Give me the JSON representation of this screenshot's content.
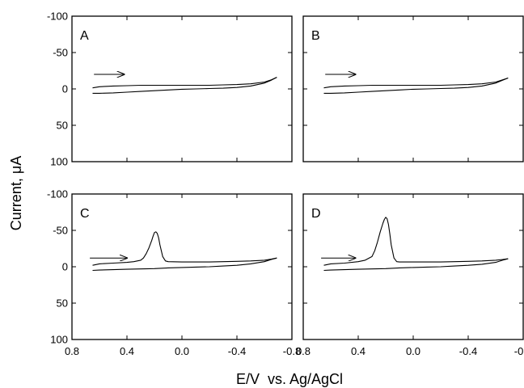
{
  "chart_data": {
    "type": "line",
    "xlabel": "E/V  vs. Ag/AgCl",
    "ylabel": "Current, μA",
    "xlim": [
      0.8,
      -0.8
    ],
    "ylim": [
      -100,
      100
    ],
    "y_inverted": true,
    "xticks": [
      "0.8",
      "0.4",
      "0.0",
      "-0.4",
      "-0.8"
    ],
    "xtick_values": [
      0.8,
      0.4,
      0.0,
      -0.4,
      -0.8
    ],
    "yticks": [
      "-100",
      "-50",
      "0",
      "50",
      "100"
    ],
    "ytick_values": [
      -100,
      -50,
      0,
      50,
      100
    ],
    "panels": [
      {
        "label": "A",
        "arrow": {
          "from": [
            0.64,
            -20
          ],
          "to": [
            0.42,
            -20
          ]
        },
        "series": [
          {
            "x": [
              0.65,
              0.6,
              0.5,
              0.4,
              0.3,
              0.2,
              0.1,
              0.0,
              -0.1,
              -0.2,
              -0.3,
              -0.4,
              -0.5,
              -0.6,
              -0.65,
              -0.69
            ],
            "y": [
              -1.5,
              -3,
              -4,
              -4.5,
              -5,
              -5,
              -5,
              -5,
              -5,
              -5,
              -5.5,
              -6,
              -7,
              -9.5,
              -12.5,
              -16
            ]
          },
          {
            "x": [
              -0.69,
              -0.65,
              -0.6,
              -0.5,
              -0.4,
              -0.3,
              -0.2,
              -0.1,
              0.0,
              0.1,
              0.2,
              0.3,
              0.4,
              0.5,
              0.6,
              0.65
            ],
            "y": [
              -16,
              -12,
              -8,
              -4,
              -2,
              -1,
              -0.5,
              0,
              0.5,
              1.5,
              2.5,
              3.5,
              4.5,
              5.5,
              6,
              6
            ]
          }
        ]
      },
      {
        "label": "B",
        "arrow": {
          "from": [
            0.64,
            -20
          ],
          "to": [
            0.42,
            -20
          ]
        },
        "series": [
          {
            "x": [
              0.65,
              0.6,
              0.5,
              0.4,
              0.3,
              0.2,
              0.1,
              0.0,
              -0.1,
              -0.2,
              -0.3,
              -0.4,
              -0.5,
              -0.6,
              -0.65,
              -0.69
            ],
            "y": [
              -1.5,
              -3,
              -4,
              -4.5,
              -5,
              -5,
              -5,
              -5,
              -5,
              -5,
              -5.5,
              -6,
              -7,
              -9.5,
              -12.5,
              -15
            ]
          },
          {
            "x": [
              -0.69,
              -0.65,
              -0.6,
              -0.5,
              -0.4,
              -0.3,
              -0.2,
              -0.1,
              0.0,
              0.1,
              0.2,
              0.3,
              0.4,
              0.5,
              0.6,
              0.65
            ],
            "y": [
              -15,
              -12,
              -8,
              -4,
              -2,
              -1,
              -0.5,
              0,
              0.5,
              1.5,
              2.5,
              3.5,
              4.5,
              5.5,
              6,
              6
            ]
          }
        ]
      },
      {
        "label": "C",
        "arrow": {
          "from": [
            0.67,
            -12
          ],
          "to": [
            0.4,
            -12
          ]
        },
        "series": [
          {
            "x": [
              0.65,
              0.6,
              0.5,
              0.4,
              0.35,
              0.3,
              0.28,
              0.26,
              0.24,
              0.22,
              0.21,
              0.2,
              0.19,
              0.18,
              0.17,
              0.16,
              0.14,
              0.12,
              0.1,
              0.0,
              -0.1,
              -0.2,
              -0.3,
              -0.4,
              -0.5,
              -0.6,
              -0.65,
              -0.69
            ],
            "y": [
              -2,
              -4,
              -5,
              -6,
              -7,
              -9,
              -12,
              -18,
              -26,
              -36,
              -42,
              -47,
              -48,
              -46,
              -40,
              -30,
              -14,
              -8,
              -7,
              -6.5,
              -6.5,
              -6.5,
              -7,
              -7.5,
              -8,
              -9,
              -10.5,
              -12
            ]
          },
          {
            "x": [
              -0.69,
              -0.65,
              -0.6,
              -0.5,
              -0.4,
              -0.3,
              -0.2,
              -0.1,
              0.0,
              0.1,
              0.2,
              0.3,
              0.4,
              0.5,
              0.6,
              0.65
            ],
            "y": [
              -12,
              -10,
              -7,
              -4,
              -2,
              -1,
              0,
              0.5,
              1,
              1.5,
              2.5,
              3,
              3.5,
              4,
              4.5,
              5
            ]
          }
        ]
      },
      {
        "label": "D",
        "arrow": {
          "from": [
            0.67,
            -12
          ],
          "to": [
            0.42,
            -12
          ]
        },
        "series": [
          {
            "x": [
              0.65,
              0.6,
              0.5,
              0.4,
              0.35,
              0.3,
              0.28,
              0.26,
              0.24,
              0.22,
              0.21,
              0.2,
              0.19,
              0.18,
              0.17,
              0.16,
              0.14,
              0.12,
              0.1,
              0.0,
              -0.1,
              -0.2,
              -0.3,
              -0.4,
              -0.5,
              -0.6,
              -0.65,
              -0.69
            ],
            "y": [
              -2,
              -4,
              -5,
              -7,
              -9,
              -14,
              -22,
              -34,
              -48,
              -60,
              -65,
              -68,
              -66,
              -58,
              -45,
              -30,
              -12,
              -7,
              -6.5,
              -6.5,
              -6.5,
              -6.5,
              -7,
              -7.5,
              -8,
              -9,
              -10,
              -11
            ]
          },
          {
            "x": [
              -0.69,
              -0.65,
              -0.6,
              -0.5,
              -0.4,
              -0.3,
              -0.2,
              -0.1,
              0.0,
              0.1,
              0.2,
              0.3,
              0.4,
              0.5,
              0.6,
              0.65
            ],
            "y": [
              -11,
              -9,
              -6,
              -3.5,
              -2,
              -1,
              0,
              0.5,
              1,
              1.5,
              2.5,
              3,
              3.5,
              4,
              4.5,
              5
            ]
          }
        ]
      }
    ]
  }
}
